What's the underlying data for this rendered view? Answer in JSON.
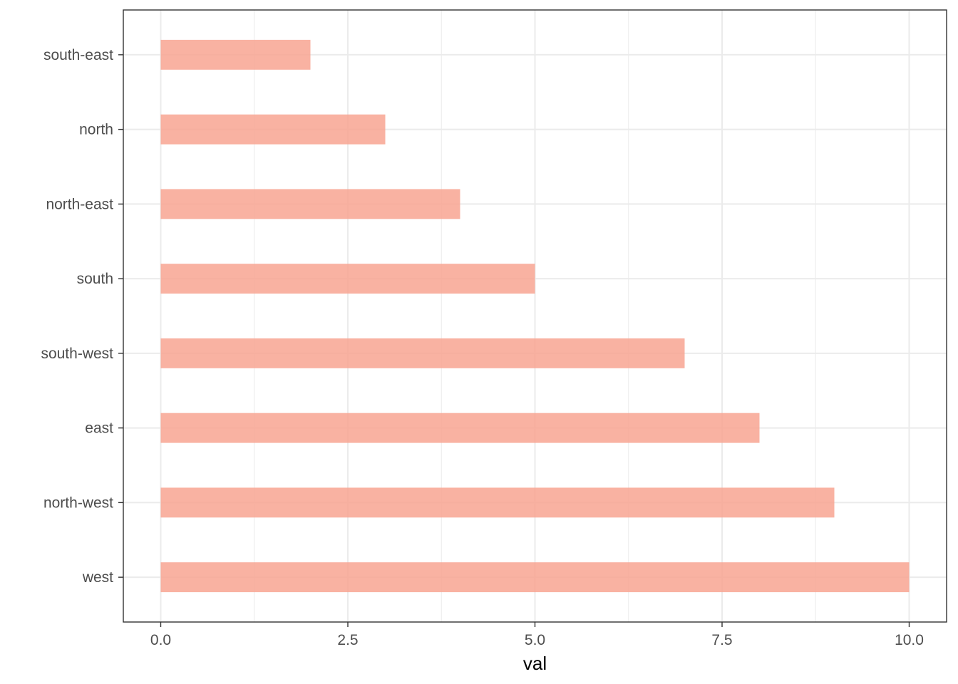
{
  "chart_data": {
    "type": "bar",
    "orientation": "horizontal",
    "categories": [
      "south-east",
      "north",
      "north-east",
      "south",
      "south-west",
      "east",
      "north-west",
      "west"
    ],
    "values": [
      2,
      3,
      4,
      5,
      7,
      8,
      9,
      10
    ],
    "xlabel": "val",
    "ylabel": "",
    "xlim": [
      -0.5,
      10.5
    ],
    "x_ticks": [
      0,
      2.5,
      5,
      7.5,
      10
    ],
    "x_tick_labels": [
      "0.0",
      "2.5",
      "5.0",
      "7.5",
      "10.0"
    ],
    "grid": true,
    "bar_color": "#f8a592",
    "grid_color": "#ebebeb",
    "panel_border_color": "#333333"
  }
}
